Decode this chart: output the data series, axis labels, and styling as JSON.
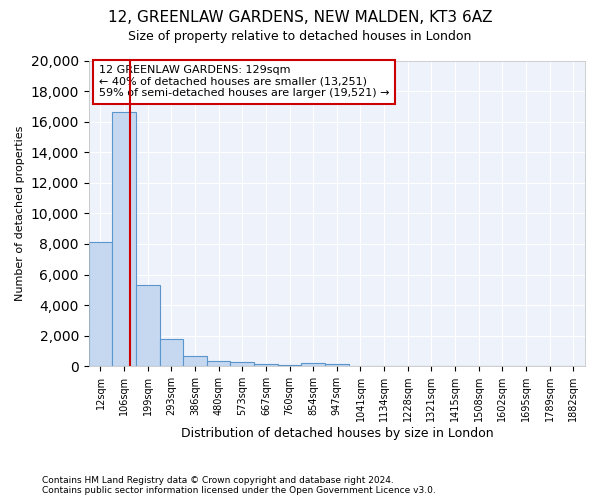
{
  "title_line1": "12, GREENLAW GARDENS, NEW MALDEN, KT3 6AZ",
  "title_line2": "Size of property relative to detached houses in London",
  "xlabel": "Distribution of detached houses by size in London",
  "ylabel": "Number of detached properties",
  "annotation_title": "12 GREENLAW GARDENS: 129sqm",
  "annotation_line2": "← 40% of detached houses are smaller (13,251)",
  "annotation_line3": "59% of semi-detached houses are larger (19,521) →",
  "footer_line1": "Contains HM Land Registry data © Crown copyright and database right 2024.",
  "footer_line2": "Contains public sector information licensed under the Open Government Licence v3.0.",
  "categories": [
    "12sqm",
    "106sqm",
    "199sqm",
    "293sqm",
    "386sqm",
    "480sqm",
    "573sqm",
    "667sqm",
    "760sqm",
    "854sqm",
    "947sqm",
    "1041sqm",
    "1134sqm",
    "1228sqm",
    "1321sqm",
    "1415sqm",
    "1508sqm",
    "1602sqm",
    "1695sqm",
    "1789sqm",
    "1882sqm"
  ],
  "bar_values": [
    8100,
    16600,
    5300,
    1800,
    650,
    350,
    250,
    150,
    100,
    180,
    120,
    0,
    0,
    0,
    0,
    0,
    0,
    0,
    0,
    0,
    0
  ],
  "property_size_idx": 1.25,
  "bar_color": "#c5d8f0",
  "bar_edge_color": "#5a96cc",
  "line_color": "#cc0000",
  "box_color": "#cc0000",
  "background_color": "#eef2fb",
  "ylim": [
    0,
    20000
  ],
  "yticks": [
    0,
    2000,
    4000,
    6000,
    8000,
    10000,
    12000,
    14000,
    16000,
    18000,
    20000
  ]
}
